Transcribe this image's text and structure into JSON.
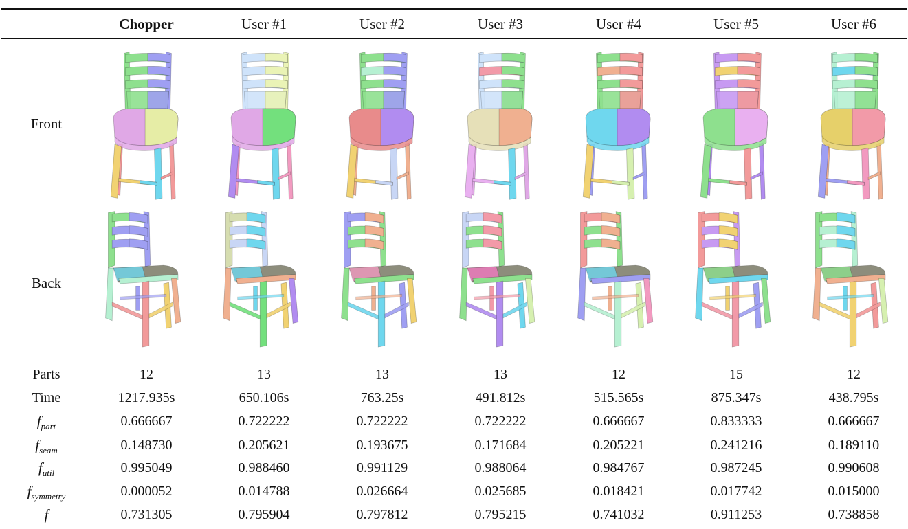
{
  "columns": [
    "Chopper",
    "User #1",
    "User #2",
    "User #3",
    "User #4",
    "User #5",
    "User #6"
  ],
  "row_labels": {
    "front": "Front",
    "back": "Back"
  },
  "metrics": {
    "parts": {
      "label": "Parts",
      "values": [
        "12",
        "13",
        "13",
        "13",
        "12",
        "15",
        "12"
      ]
    },
    "time": {
      "label": "Time",
      "values": [
        "1217.935s",
        "650.106s",
        "763.25s",
        "491.812s",
        "515.565s",
        "875.347s",
        "438.795s"
      ]
    },
    "f_part": {
      "label": "f",
      "sub": "part",
      "values": [
        "0.666667",
        "0.722222",
        "0.722222",
        "0.722222",
        "0.666667",
        "0.833333",
        "0.666667"
      ]
    },
    "f_seam": {
      "label": "f",
      "sub": "seam",
      "values": [
        "0.148730",
        "0.205621",
        "0.193675",
        "0.171684",
        "0.205221",
        "0.241216",
        "0.189110"
      ]
    },
    "f_util": {
      "label": "f",
      "sub": "util",
      "values": [
        "0.995049",
        "0.988460",
        "0.991129",
        "0.988064",
        "0.984767",
        "0.987245",
        "0.990608"
      ]
    },
    "f_symmetry": {
      "label": "f",
      "sub": "symmetry",
      "values": [
        "0.000052",
        "0.014788",
        "0.026664",
        "0.025685",
        "0.018421",
        "0.017742",
        "0.015000"
      ]
    },
    "f": {
      "label": "f",
      "values": [
        "0.731305",
        "0.795904",
        "0.797812",
        "0.795215",
        "0.741032",
        "0.911253",
        "0.738858"
      ]
    }
  },
  "images": {
    "front": [
      {
        "name": "chair-front-chopper",
        "colors": [
          "#8ee08e",
          "#9f9ff2",
          "#8ee08e",
          "#e0a8e6",
          "#e6eda6",
          "#f1d272",
          "#6fd7ee",
          "#f29a9a"
        ]
      },
      {
        "name": "chair-front-user1",
        "colors": [
          "#cfe3fa",
          "#eaf3b6",
          "#cfe3fa",
          "#e0a8e6",
          "#73e07d",
          "#b18cf0",
          "#6fd7ee",
          "#f29ac0"
        ]
      },
      {
        "name": "chair-front-user2",
        "colors": [
          "#8ee08e",
          "#9f9ff2",
          "#b6f0d2",
          "#e88b8b",
          "#b18cf0",
          "#f1d272",
          "#c8d6f5",
          "#f0b090"
        ]
      },
      {
        "name": "chair-front-user3",
        "colors": [
          "#cfe3fa",
          "#8ee08e",
          "#f29aa8",
          "#e6e0b8",
          "#f0b090",
          "#e9b0f0",
          "#6fd7ee",
          "#e0a8e6"
        ]
      },
      {
        "name": "chair-front-user4",
        "colors": [
          "#8ee08e",
          "#f29a9a",
          "#f0b090",
          "#6fd7ee",
          "#b18cf0",
          "#f1d272",
          "#d6f0b0",
          "#9f9ff2"
        ]
      },
      {
        "name": "chair-front-user5",
        "colors": [
          "#c79af2",
          "#f29a9a",
          "#f1d272",
          "#8ee08e",
          "#e9b0f0",
          "#8ee08e",
          "#f29a9a",
          "#b18cf0"
        ]
      },
      {
        "name": "chair-front-user6",
        "colors": [
          "#b6f0d2",
          "#8ee08e",
          "#6fd7ee",
          "#e6d06a",
          "#f29aa8",
          "#9f9ff2",
          "#f29ac0",
          "#f0b090"
        ]
      }
    ],
    "back": [
      {
        "name": "chair-back-chopper",
        "colors": [
          "#8ee08e",
          "#9f9ff2",
          "#9f9ff2",
          "#6fd7ee",
          "#b6f0d2",
          "#f29a9a",
          "#f1d272",
          "#f0b090"
        ]
      },
      {
        "name": "chair-back-user1",
        "colors": [
          "#d6ddb0",
          "#c8d6f5",
          "#6fd7ee",
          "#6fd7ee",
          "#f0b090",
          "#73e07d",
          "#f1d272",
          "#b18cf0"
        ]
      },
      {
        "name": "chair-back-user2",
        "colors": [
          "#9f9ff2",
          "#8ee08e",
          "#f0b090",
          "#f29ac0",
          "#8ee08e",
          "#6fd7ee",
          "#9f9ff2",
          "#f1d272"
        ]
      },
      {
        "name": "chair-back-user3",
        "colors": [
          "#c8d6f5",
          "#8ee08e",
          "#f29aa8",
          "#f27ac0",
          "#8ee08e",
          "#b18cf0",
          "#6fd7ee",
          "#d6f0b0"
        ]
      },
      {
        "name": "chair-back-user4",
        "colors": [
          "#f29a9a",
          "#8ee08e",
          "#f0b090",
          "#6fd7ee",
          "#9f9ff2",
          "#b6f0d2",
          "#d6f0b0",
          "#f29ac0"
        ]
      },
      {
        "name": "chair-back-user5",
        "colors": [
          "#f29a9a",
          "#c79af2",
          "#f1d272",
          "#8ee08e",
          "#6fd7ee",
          "#f29aa8",
          "#9f9ff2",
          "#8ee08e"
        ]
      },
      {
        "name": "chair-back-user6",
        "colors": [
          "#8ee08e",
          "#b6f0d2",
          "#6fd7ee",
          "#8ee08e",
          "#f0b090",
          "#f1d272",
          "#f29a9a",
          "#d6f0b0"
        ]
      }
    ]
  }
}
